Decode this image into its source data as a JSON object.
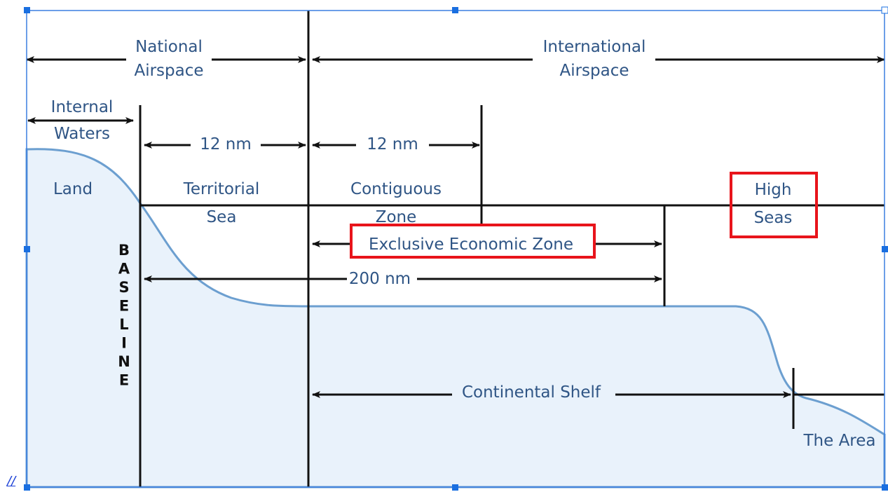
{
  "diagram": {
    "national_airspace": [
      "National",
      "Airspace"
    ],
    "international_airspace": [
      "International",
      "Airspace"
    ],
    "internal_waters": [
      "Internal",
      "Waters"
    ],
    "territorial_distance": "12 nm",
    "contiguous_distance": "12 nm",
    "land": "Land",
    "territorial_sea": [
      "Territorial",
      "Sea"
    ],
    "contiguous_zone": [
      "Contiguous",
      "Zone"
    ],
    "high_seas": [
      "High",
      "Seas"
    ],
    "exclusive_economic_zone": "Exclusive Economic Zone",
    "eez_distance": "200 nm",
    "baseline": [
      "B",
      "A",
      "S",
      "E",
      "L",
      "I",
      "N",
      "E"
    ],
    "continental_shelf": "Continental Shelf",
    "the_area": "The Area"
  },
  "link": "//"
}
